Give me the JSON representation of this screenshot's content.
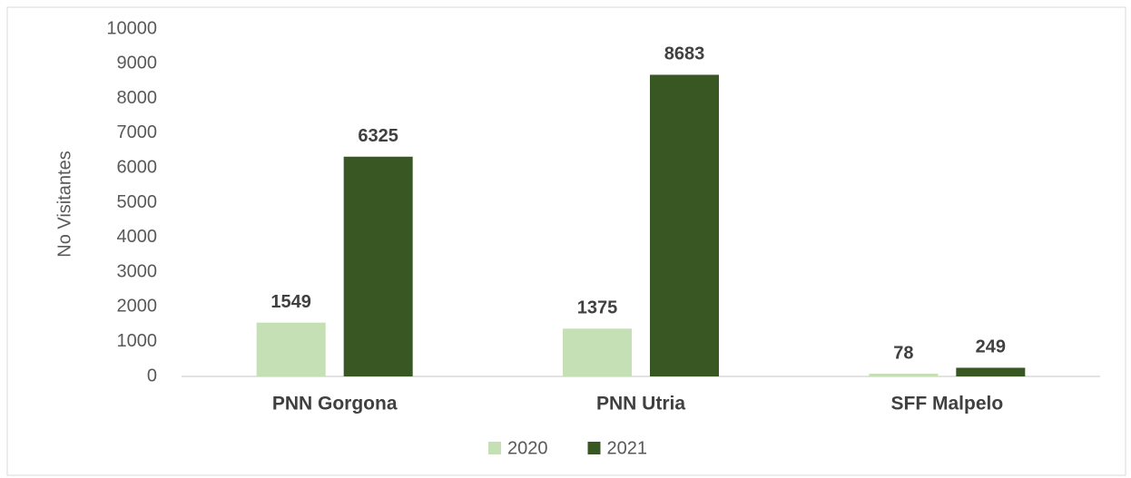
{
  "chart_data": {
    "type": "bar",
    "y_label": "No Visitantes",
    "categories": [
      "PNN Gorgona",
      "PNN Utria",
      "SFF Malpelo"
    ],
    "series": [
      {
        "name": "2020",
        "color": "#c5e0b4",
        "values": [
          1549,
          1375,
          78
        ]
      },
      {
        "name": "2021",
        "color": "#385723",
        "values": [
          6325,
          8683,
          249
        ]
      }
    ],
    "ylim": [
      0,
      10000
    ],
    "yticks": [
      0,
      1000,
      2000,
      3000,
      4000,
      5000,
      6000,
      7000,
      8000,
      9000,
      10000
    ],
    "grid": false,
    "legend": "bottom"
  }
}
